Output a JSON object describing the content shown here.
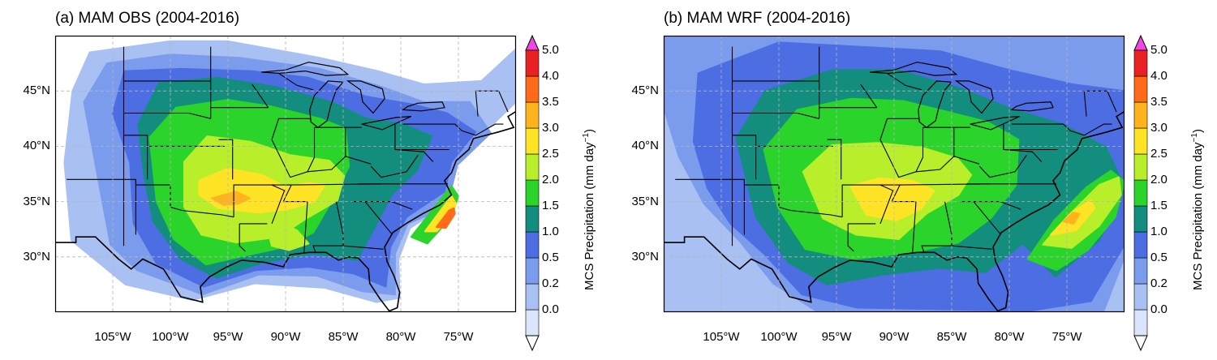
{
  "panels": [
    {
      "title": "(a) MAM OBS (2004-2016)",
      "dataset": "OBS"
    },
    {
      "title": "(b) MAM WRF (2004-2016)",
      "dataset": "WRF"
    }
  ],
  "map_extent": {
    "lon_min": -110,
    "lon_max": -70,
    "lat_min": 25,
    "lat_max": 50
  },
  "latitude_labels": [
    "45°N",
    "40°N",
    "35°N",
    "30°N"
  ],
  "longitude_labels": [
    "105°W",
    "100°W",
    "95°W",
    "90°W",
    "85°W",
    "80°W",
    "75°W"
  ],
  "latitude_values": [
    45,
    40,
    35,
    30
  ],
  "longitude_values": [
    -105,
    -100,
    -95,
    -90,
    -85,
    -80,
    -75
  ],
  "colorbar": {
    "title": "MCS Precipitation (mm day",
    "title_superscript": "−1",
    "title_suffix": ")",
    "levels": [
      "0.0",
      "0.2",
      "0.5",
      "1.0",
      "1.5",
      "2.0",
      "2.5",
      "3.0",
      "3.5",
      "4.0",
      "5.0"
    ],
    "colors": [
      "#ffffff",
      "#dae4fb",
      "#a9c0f3",
      "#7b9ced",
      "#4d6ee3",
      "#138d7e",
      "#2bd42b",
      "#b8ef2a",
      "#ffe426",
      "#ffb41e",
      "#ff6b18",
      "#e82222",
      "#f046e4"
    ],
    "extend": "both"
  },
  "colors": {
    "land_fill": "#f8f8f8",
    "border": "#000000",
    "grid": "#b5b5b5"
  }
}
